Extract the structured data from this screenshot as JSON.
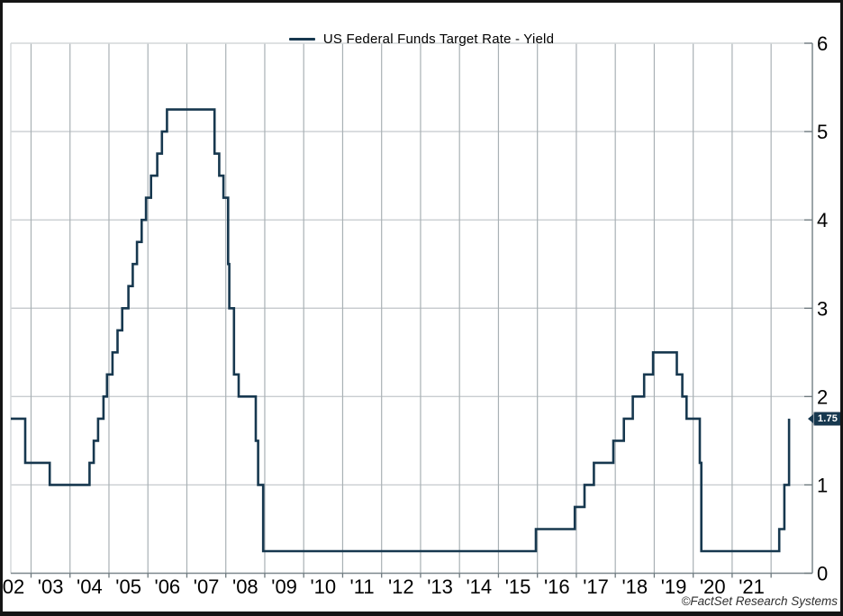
{
  "window": {
    "background": "#ffffff",
    "frame_color": "#141414"
  },
  "legend": {
    "label": "US Federal Funds Target Rate - Yield",
    "swatch_color": "#17384f"
  },
  "last_value_badge": {
    "text": "1.75",
    "bg": "#17384f",
    "text_color": "#ffffff"
  },
  "footer": {
    "copyright": "©FactSet Research Systems"
  },
  "chart_data": {
    "type": "line",
    "line_style": "step",
    "title": "US Federal Funds Target Rate - Yield",
    "ylabel": "",
    "xlabel": "",
    "y_domain": [
      0,
      6
    ],
    "x_domain": [
      2002.48,
      2023.06
    ],
    "y_ticks": [
      0,
      1,
      2,
      3,
      4,
      5,
      6
    ],
    "x_ticks": [
      {
        "year": 2002,
        "label": "'02"
      },
      {
        "year": 2003,
        "label": "'03"
      },
      {
        "year": 2004,
        "label": "'04"
      },
      {
        "year": 2005,
        "label": "'05"
      },
      {
        "year": 2006,
        "label": "'06"
      },
      {
        "year": 2007,
        "label": "'07"
      },
      {
        "year": 2008,
        "label": "'08"
      },
      {
        "year": 2009,
        "label": "'09"
      },
      {
        "year": 2010,
        "label": "'10"
      },
      {
        "year": 2011,
        "label": "'11"
      },
      {
        "year": 2012,
        "label": "'12"
      },
      {
        "year": 2013,
        "label": "'13"
      },
      {
        "year": 2014,
        "label": "'14"
      },
      {
        "year": 2015,
        "label": "'15"
      },
      {
        "year": 2016,
        "label": "'16"
      },
      {
        "year": 2017,
        "label": "'17"
      },
      {
        "year": 2018,
        "label": "'18"
      },
      {
        "year": 2019,
        "label": "'19"
      },
      {
        "year": 2020,
        "label": "'20"
      },
      {
        "year": 2021,
        "label": "'21"
      }
    ],
    "gridline_years": [
      2003,
      2004,
      2005,
      2006,
      2007,
      2008,
      2009,
      2010,
      2011,
      2012,
      2013,
      2014,
      2015,
      2016,
      2017,
      2018,
      2019,
      2020,
      2021,
      2022
    ],
    "grid": true,
    "legend_position": "top-center",
    "last_value": 1.75,
    "series": [
      {
        "name": "US Federal Funds Target Rate - Yield",
        "color": "#17384f",
        "step_points_year_rate": [
          [
            2002.48,
            1.75
          ],
          [
            2002.85,
            1.25
          ],
          [
            2003.48,
            1.0
          ],
          [
            2004.5,
            1.25
          ],
          [
            2004.61,
            1.5
          ],
          [
            2004.72,
            1.75
          ],
          [
            2004.86,
            2.0
          ],
          [
            2004.95,
            2.25
          ],
          [
            2005.09,
            2.5
          ],
          [
            2005.22,
            2.75
          ],
          [
            2005.34,
            3.0
          ],
          [
            2005.5,
            3.25
          ],
          [
            2005.61,
            3.5
          ],
          [
            2005.72,
            3.75
          ],
          [
            2005.84,
            4.0
          ],
          [
            2005.95,
            4.25
          ],
          [
            2006.08,
            4.5
          ],
          [
            2006.24,
            4.75
          ],
          [
            2006.36,
            5.0
          ],
          [
            2006.49,
            5.25
          ],
          [
            2007.71,
            4.75
          ],
          [
            2007.83,
            4.5
          ],
          [
            2007.94,
            4.25
          ],
          [
            2008.06,
            3.5
          ],
          [
            2008.09,
            3.0
          ],
          [
            2008.21,
            2.25
          ],
          [
            2008.33,
            2.0
          ],
          [
            2008.77,
            1.5
          ],
          [
            2008.83,
            1.0
          ],
          [
            2008.96,
            0.25
          ],
          [
            2015.96,
            0.5
          ],
          [
            2016.96,
            0.75
          ],
          [
            2017.21,
            1.0
          ],
          [
            2017.45,
            1.25
          ],
          [
            2017.95,
            1.5
          ],
          [
            2018.22,
            1.75
          ],
          [
            2018.45,
            2.0
          ],
          [
            2018.74,
            2.25
          ],
          [
            2018.97,
            2.5
          ],
          [
            2019.58,
            2.25
          ],
          [
            2019.72,
            2.0
          ],
          [
            2019.83,
            1.75
          ],
          [
            2020.17,
            1.25
          ],
          [
            2020.21,
            0.25
          ],
          [
            2022.21,
            0.5
          ],
          [
            2022.34,
            1.0
          ],
          [
            2022.46,
            1.75
          ]
        ]
      }
    ],
    "colors": {
      "grid_vertical": "#a9b1b5",
      "grid_horizontal": "#c9cdd0",
      "axis": "#7c878c",
      "border_light": "#d3d7d9",
      "tick": "#6c787d",
      "label": "#000000"
    }
  }
}
